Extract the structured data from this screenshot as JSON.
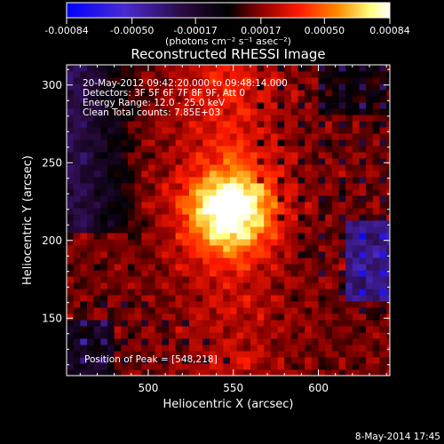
{
  "chart_data": {
    "type": "heatmap",
    "title": "Reconstructed RHESSI Image",
    "xlabel": "Heliocentric X (arcsec)",
    "ylabel": "Heliocentric Y (arcsec)",
    "xlim": [
      452,
      642
    ],
    "ylim": [
      113,
      313
    ],
    "x_ticks": [
      500,
      550,
      600
    ],
    "y_ticks": [
      150,
      200,
      250,
      300
    ],
    "x_tick_labels": [
      "500",
      "550",
      "600"
    ],
    "y_tick_labels": [
      "150",
      "200",
      "250",
      "300"
    ],
    "colorbar": {
      "min": -0.00084,
      "max": 0.00084,
      "ticks": [
        -0.00084,
        -0.0005,
        -0.00017,
        0.00017,
        0.0005,
        0.00084
      ],
      "tick_labels": [
        "-0.00084",
        "-0.00050",
        "-0.00017",
        "0.00017",
        "0.00050",
        "0.00084"
      ],
      "units_label": "(photons cm⁻² s⁻¹ asec⁻²)",
      "colors": [
        "#0000ff",
        "#5a2db4",
        "#000000",
        "#8b0000",
        "#ff0000",
        "#ff8c00",
        "#ffff99",
        "#ffffff"
      ]
    },
    "annotations": [
      "20-May-2012 09:42:20.000 to 09:48:14.000",
      "Detectors: 3F 5F 6F 7F 8F 9F, Att 0",
      "Energy Range: 12.0 - 25.0 keV",
      "Clean    Total counts: 7.85E+03"
    ],
    "peak_label": "Position of Peak = [548,218]",
    "peak": [
      548,
      218
    ],
    "grid": false
  },
  "footer": {
    "timestamp": "8-May-2014 17:45"
  }
}
